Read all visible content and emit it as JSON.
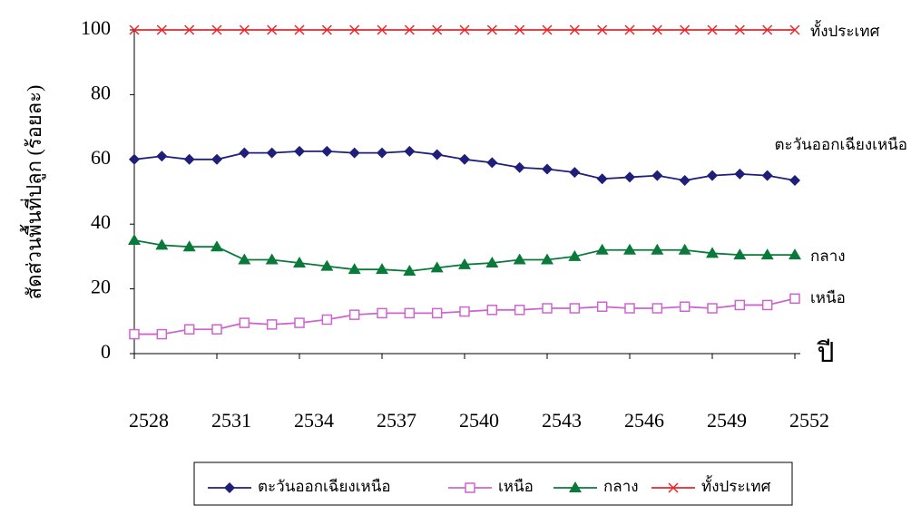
{
  "chart_data": {
    "type": "line",
    "x_label": "ปี",
    "y_label": "สัดส่วนพื้นที่ปลูก (ร้อยละ)",
    "x": [
      2528,
      2529,
      2530,
      2531,
      2532,
      2533,
      2534,
      2535,
      2536,
      2537,
      2538,
      2539,
      2540,
      2541,
      2542,
      2543,
      2544,
      2545,
      2546,
      2547,
      2548,
      2549,
      2550,
      2551,
      2552
    ],
    "xlim": [
      2528,
      2552
    ],
    "xticks": [
      2528,
      2531,
      2534,
      2537,
      2540,
      2543,
      2546,
      2549,
      2552
    ],
    "ylim": [
      0,
      100
    ],
    "yticks": [
      0,
      20,
      40,
      60,
      80,
      100
    ],
    "legend": "bottom",
    "series": [
      {
        "name": "ตะวันออกเฉียงเหนือ",
        "color": "#1f1f7a",
        "marker": "diamond",
        "values": [
          60,
          61,
          60,
          60,
          62,
          62,
          62.5,
          62.5,
          62,
          62,
          62.5,
          61.5,
          60,
          59,
          57.5,
          57,
          56,
          54,
          54.5,
          55,
          53.5,
          55,
          55.5,
          55,
          53.5
        ]
      },
      {
        "name": "เหนือ",
        "color": "#cc66cc",
        "marker": "square",
        "values": [
          6,
          6,
          7.5,
          7.5,
          9.5,
          9,
          9.5,
          10.5,
          12,
          12.5,
          12.5,
          12.5,
          13,
          13.5,
          13.5,
          14,
          14,
          14.5,
          14,
          14,
          14.5,
          14,
          15,
          15,
          17
        ]
      },
      {
        "name": "กลาง",
        "color": "#0a7a3a",
        "marker": "triangle",
        "values": [
          35,
          33.5,
          33,
          33,
          29,
          29,
          28,
          27,
          26,
          26,
          25.5,
          26.5,
          27.5,
          28,
          29,
          29,
          30,
          32,
          32,
          32,
          32,
          31,
          30.5,
          30.5,
          30.5
        ]
      },
      {
        "name": "ทั้งประเทศ",
        "color": "#e8262a",
        "marker": "x",
        "values": [
          100,
          100,
          100,
          100,
          100,
          100,
          100,
          100,
          100,
          100,
          100,
          100,
          100,
          100,
          100,
          100,
          100,
          100,
          100,
          100,
          100,
          100,
          100,
          100,
          100
        ]
      }
    ]
  }
}
